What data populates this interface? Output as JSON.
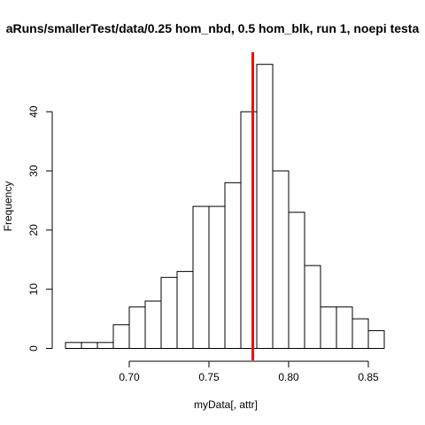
{
  "chart_data": {
    "type": "histogram",
    "title": "aRuns/smallerTest/data/0.25 hom_nbd, 0.5 hom_blk, run 1, noepi testa",
    "xlabel": "myData[, attr]",
    "ylabel": "Frequency",
    "bins": [
      {
        "x0": 0.66,
        "x1": 0.67,
        "count": 1
      },
      {
        "x0": 0.67,
        "x1": 0.68,
        "count": 1
      },
      {
        "x0": 0.68,
        "x1": 0.69,
        "count": 1
      },
      {
        "x0": 0.69,
        "x1": 0.7,
        "count": 4
      },
      {
        "x0": 0.7,
        "x1": 0.71,
        "count": 7
      },
      {
        "x0": 0.71,
        "x1": 0.72,
        "count": 8
      },
      {
        "x0": 0.72,
        "x1": 0.73,
        "count": 12
      },
      {
        "x0": 0.73,
        "x1": 0.74,
        "count": 13
      },
      {
        "x0": 0.74,
        "x1": 0.75,
        "count": 24
      },
      {
        "x0": 0.75,
        "x1": 0.76,
        "count": 24
      },
      {
        "x0": 0.76,
        "x1": 0.77,
        "count": 28
      },
      {
        "x0": 0.77,
        "x1": 0.78,
        "count": 40
      },
      {
        "x0": 0.78,
        "x1": 0.79,
        "count": 48
      },
      {
        "x0": 0.79,
        "x1": 0.8,
        "count": 30
      },
      {
        "x0": 0.8,
        "x1": 0.81,
        "count": 23
      },
      {
        "x0": 0.81,
        "x1": 0.82,
        "count": 14
      },
      {
        "x0": 0.82,
        "x1": 0.83,
        "count": 7
      },
      {
        "x0": 0.83,
        "x1": 0.84,
        "count": 7
      },
      {
        "x0": 0.84,
        "x1": 0.85,
        "count": 5
      },
      {
        "x0": 0.85,
        "x1": 0.86,
        "count": 3
      }
    ],
    "x_ticks": [
      0.7,
      0.75,
      0.8,
      0.85
    ],
    "x_tick_labels": [
      "0.70",
      "0.75",
      "0.80",
      "0.85"
    ],
    "y_ticks": [
      0,
      10,
      20,
      30,
      40
    ],
    "y_tick_labels": [
      "0",
      "10",
      "20",
      "30",
      "40"
    ],
    "xlim": [
      0.66,
      0.86
    ],
    "ylim": [
      0,
      48
    ],
    "reference_line": {
      "x": 0.7775,
      "color": "#ff0000"
    },
    "bar_fill": "#ffffff",
    "bar_stroke": "#000000",
    "grid": false
  }
}
